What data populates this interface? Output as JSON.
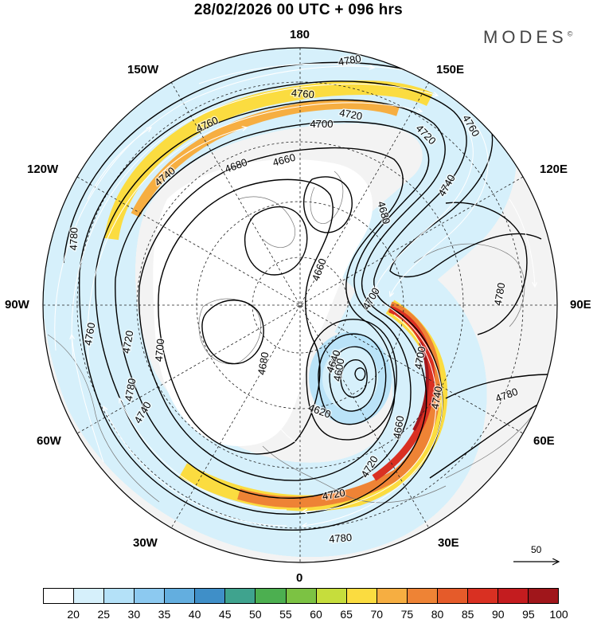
{
  "title": "28/02/2026  00 UTC  + 096 hrs",
  "brand": "MODES",
  "brand_mark": "©",
  "lon_labels": {
    "l180": "180",
    "l150w": "150W",
    "l150e": "150E",
    "l120w": "120W",
    "l120e": "120E",
    "l90w": "90W",
    "l90e": "90E",
    "l60w": "60W",
    "l60e": "60E",
    "l30w": "30W",
    "l30e": "30E",
    "l0": "0"
  },
  "reference_vector": {
    "label": "50"
  },
  "colorbar": {
    "colors": [
      "#ffffff",
      "#d6f0fb",
      "#b4e1f8",
      "#8cc9f0",
      "#63aedf",
      "#3f8fc8",
      "#3fa38e",
      "#4caf50",
      "#7cc243",
      "#c6dd3c",
      "#fbdc40",
      "#f6ae41",
      "#ee8335",
      "#e55b2a",
      "#d93022",
      "#c41c1f",
      "#a0161b"
    ],
    "ticks": [
      "20",
      "25",
      "30",
      "35",
      "40",
      "45",
      "50",
      "55",
      "60",
      "65",
      "70",
      "75",
      "80",
      "85",
      "90",
      "95",
      "100"
    ]
  },
  "contour_labels": [
    {
      "text": "4780"
    },
    {
      "text": "4760"
    },
    {
      "text": "4720"
    },
    {
      "text": "4760"
    },
    {
      "text": "4700"
    },
    {
      "text": "4720"
    },
    {
      "text": "4760"
    },
    {
      "text": "4740"
    },
    {
      "text": "4680"
    },
    {
      "text": "4660"
    },
    {
      "text": "4740"
    },
    {
      "text": "4680"
    },
    {
      "text": "4660"
    },
    {
      "text": "4780"
    },
    {
      "text": "4780"
    },
    {
      "text": "4760"
    },
    {
      "text": "4720"
    },
    {
      "text": "4700"
    },
    {
      "text": "4680"
    },
    {
      "text": "4700"
    },
    {
      "text": "4640"
    },
    {
      "text": "4600"
    },
    {
      "text": "4620"
    },
    {
      "text": "4700"
    },
    {
      "text": "4740"
    },
    {
      "text": "4780"
    },
    {
      "text": "4780"
    },
    {
      "text": "4740"
    },
    {
      "text": "4720"
    },
    {
      "text": "4660"
    },
    {
      "text": "4720"
    },
    {
      "text": "4780"
    }
  ]
}
